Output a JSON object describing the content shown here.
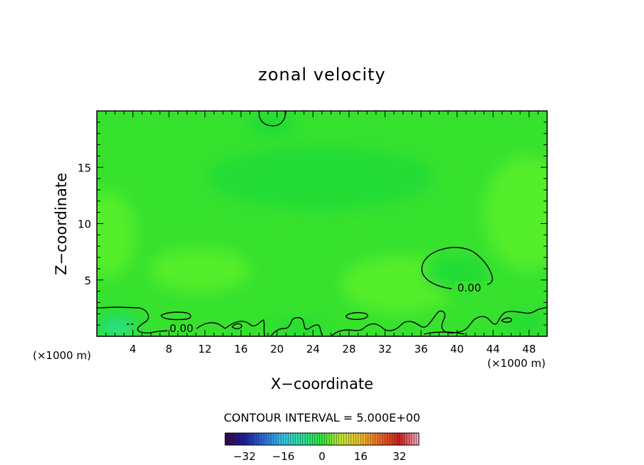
{
  "chart_data": {
    "type": "heatmap",
    "title": "zonal velocity",
    "xlabel": "X−coordinate",
    "ylabel": "Z−coordinate",
    "x_unit_left": "(×1000 m)",
    "x_unit_right": "(×1000 m)",
    "xlim": [
      0,
      50
    ],
    "ylim": [
      0,
      20
    ],
    "x_ticks": [
      4,
      8,
      12,
      16,
      20,
      24,
      28,
      32,
      36,
      40,
      44,
      48
    ],
    "y_ticks": [
      5,
      10,
      15
    ],
    "contour_interval_text": "CONTOUR INTERVAL = 5.000E+00",
    "contour_label": "0.00",
    "contour_labels": [
      {
        "text": "0.00",
        "x": 9.5,
        "z": 0.7
      },
      {
        "text": "0.00",
        "x": 41.5,
        "z": 4.3
      }
    ],
    "colorbar": {
      "range": [
        -40,
        40
      ],
      "ticks": [
        -32,
        -16,
        0,
        16,
        32
      ],
      "colors": [
        "#3a0a4a",
        "#1f1f9a",
        "#2f6fe0",
        "#38c8e8",
        "#2ee39a",
        "#35e53a",
        "#c8e83a",
        "#f0c030",
        "#f06a2a",
        "#d02020",
        "#f4b0c0"
      ]
    },
    "field": {
      "background_value": 3,
      "colors": {
        "background": "#37e22e",
        "light": "#55ee2a",
        "dark": "#22dc36",
        "cyan": "#2ee0a0"
      }
    }
  }
}
